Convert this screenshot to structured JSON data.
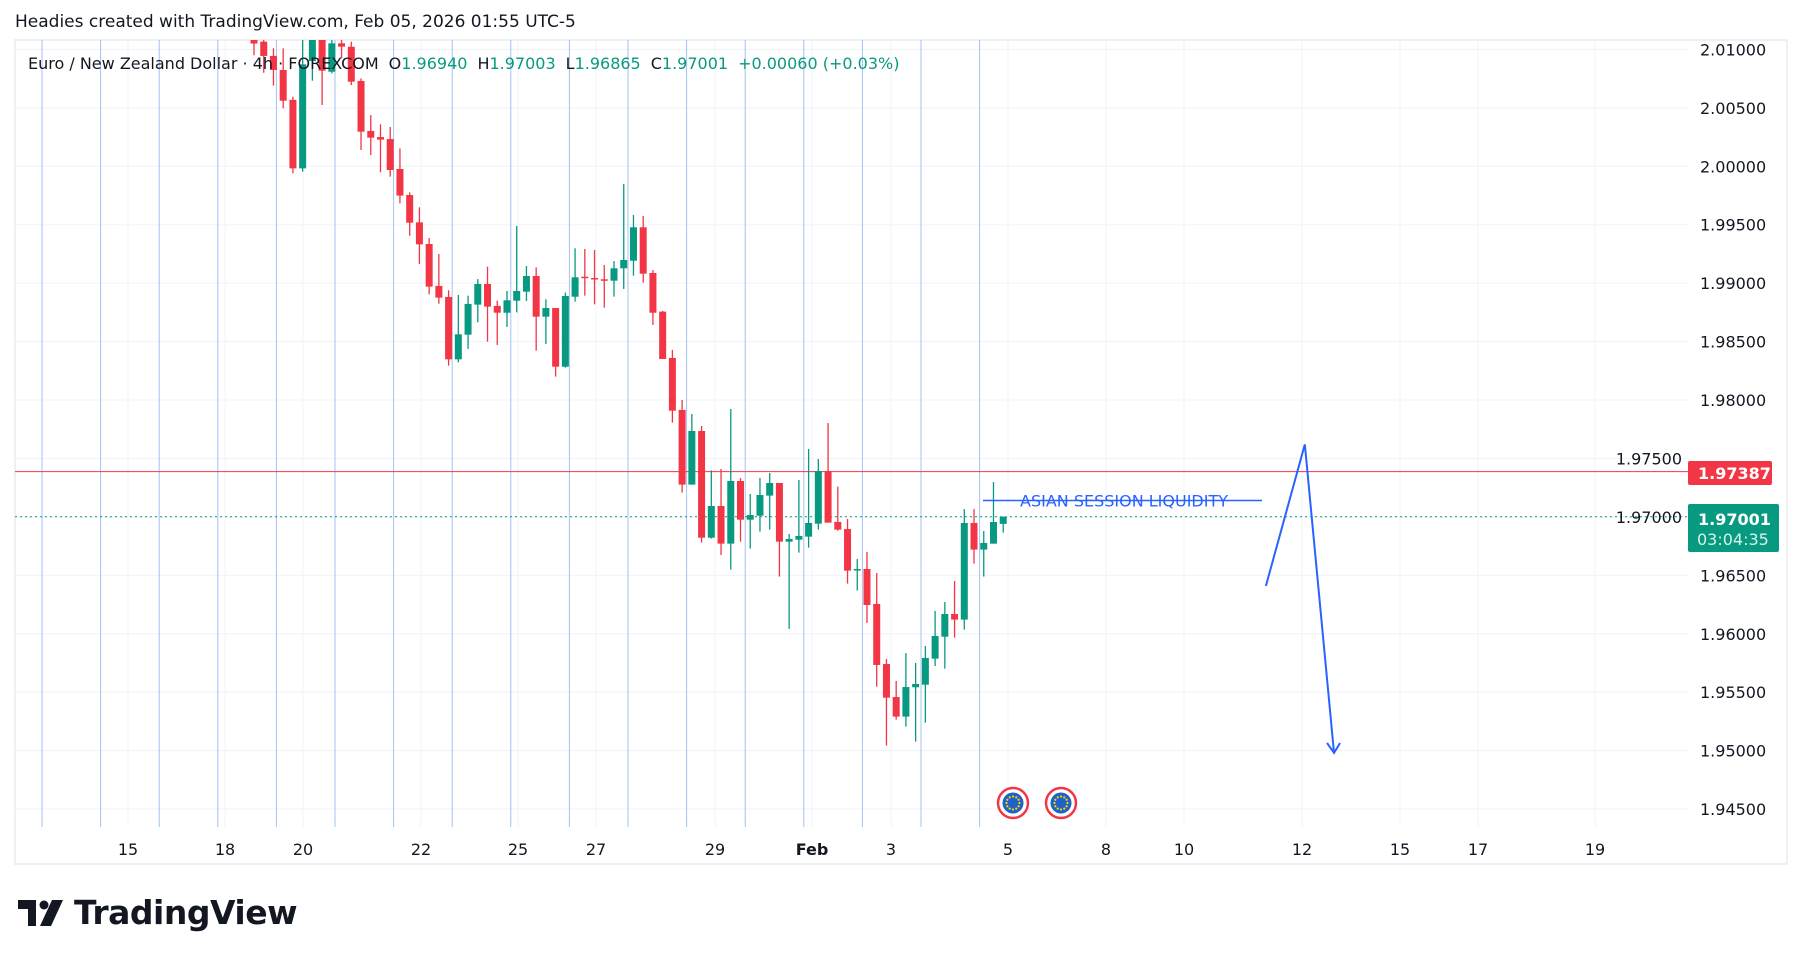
{
  "header": {
    "attribution": "Headies created with TradingView.com, Feb 05, 2026 01:55 UTC-5"
  },
  "legend": {
    "symbol": "Euro / New Zealand Dollar · 4h · FOREXCOM",
    "o_label": "O",
    "o_value": "1.96940",
    "h_label": "H",
    "h_value": "1.97003",
    "l_label": "L",
    "l_value": "1.96865",
    "c_label": "C",
    "c_value": "1.97001",
    "change": "+0.00060 (+0.03%)"
  },
  "colors": {
    "up": "#089981",
    "down": "#f23645",
    "drawing": "#2962ff",
    "session_line": "#a4c2f4",
    "grid": "#f0f3fa"
  },
  "price_labels": {
    "level_line": "1.97387",
    "last_price": "1.97001",
    "countdown": "03:04:35"
  },
  "annotation": {
    "text": "ASIAN SESSION LIQUIDITY"
  },
  "events": [
    {
      "icon": "eu-flag-icon"
    },
    {
      "icon": "eu-flag-icon"
    }
  ],
  "branding": {
    "logo_text": "TradingView"
  },
  "chart_data": {
    "type": "candlestick",
    "title": "Euro / New Zealand Dollar · 4h · FOREXCOM",
    "ylim": [
      1.9425,
      2.0125
    ],
    "y_ticks": [
      "2.01000",
      "2.00500",
      "2.00000",
      "1.99500",
      "1.99000",
      "1.98500",
      "1.98000",
      "1.97500",
      "1.97000",
      "1.96500",
      "1.96000",
      "1.95500",
      "1.95000",
      "1.94500"
    ],
    "x_ticks": [
      "15",
      "18",
      "20",
      "22",
      "25",
      "27",
      "29",
      "Feb",
      "3",
      "5",
      "8",
      "10",
      "12",
      "15",
      "17",
      "19"
    ],
    "grid": true,
    "horizontal_lines": [
      {
        "price": 1.97387,
        "style": "solid",
        "color": "#f23645"
      },
      {
        "price": 1.97001,
        "style": "dotted",
        "color": "#089981"
      }
    ],
    "annotation_line": {
      "price": 1.9714,
      "label": "ASIAN SESSION LIQUIDITY"
    },
    "projection_path": [
      {
        "candle_offset": 27,
        "price": 1.9641
      },
      {
        "candle_offset": 31,
        "price": 1.9762
      },
      {
        "candle_offset": 34,
        "price": 1.9498
      }
    ],
    "ohlc": [
      [
        2.0115,
        2.0125,
        2.0095,
        2.0105
      ],
      [
        2.01066,
        2.0112,
        2.008,
        2.00944
      ],
      [
        2.00944,
        2.01009,
        2.0069,
        2.00824
      ],
      [
        2.00824,
        2.01009,
        2.00496,
        2.00561
      ],
      [
        2.00568,
        2.00596,
        1.9994,
        1.99982
      ],
      [
        1.99982,
        2.0115,
        1.99954,
        2.00872
      ],
      [
        2.009,
        2.0135,
        2.00732,
        2.0125
      ],
      [
        2.0115,
        2.0125,
        2.00524,
        2.00818
      ],
      [
        2.00809,
        2.0125,
        2.00795,
        2.01052
      ],
      [
        2.01052,
        2.0118,
        2.00924,
        2.01023
      ],
      [
        2.01023,
        2.01066,
        2.00695,
        2.00724
      ],
      [
        2.0073,
        2.00752,
        2.00139,
        2.00296
      ],
      [
        2.00302,
        2.00439,
        2.00096,
        2.00245
      ],
      [
        2.0025,
        2.00359,
        1.99948,
        2.00228
      ],
      [
        2.00233,
        2.00336,
        1.99911,
        1.99968
      ],
      [
        1.99977,
        2.00153,
        1.99683,
        1.99749
      ],
      [
        1.99754,
        1.99777,
        1.99406,
        1.99517
      ],
      [
        1.9952,
        1.99649,
        1.99164,
        1.99332
      ],
      [
        1.99335,
        1.99386,
        1.98904,
        1.9897
      ],
      [
        1.98976,
        1.99249,
        1.98824,
        1.98876
      ],
      [
        1.98882,
        1.98939,
        1.98294,
        1.98348
      ],
      [
        1.98348,
        1.98899,
        1.98322,
        1.98562
      ],
      [
        1.98559,
        1.98893,
        1.98437,
        1.98822
      ],
      [
        1.98816,
        1.99035,
        1.98665,
        1.98993
      ],
      [
        1.98993,
        1.99141,
        1.98499,
        1.98799
      ],
      [
        1.98805,
        1.9885,
        1.98471,
        1.98747
      ],
      [
        1.98747,
        1.98933,
        1.98625,
        1.98853
      ],
      [
        1.9885,
        1.99489,
        1.9875,
        1.98933
      ],
      [
        1.98927,
        1.99147,
        1.98847,
        1.99061
      ],
      [
        1.99061,
        1.99135,
        1.98422,
        1.98713
      ],
      [
        1.98713,
        1.98862,
        1.98479,
        1.98787
      ],
      [
        1.98787,
        1.98787,
        1.982,
        1.98285
      ],
      [
        1.98285,
        1.98919,
        1.98277,
        1.9889
      ],
      [
        1.98884,
        1.99298,
        1.98842,
        1.9905
      ],
      [
        1.99055,
        1.99292,
        1.98893,
        1.99044
      ],
      [
        1.99044,
        1.99284,
        1.98819,
        1.99033
      ],
      [
        1.99033,
        1.99155,
        1.9879,
        1.99027
      ],
      [
        1.99021,
        1.99189,
        1.98884,
        1.99127
      ],
      [
        1.99127,
        1.99848,
        1.9895,
        1.99198
      ],
      [
        1.99192,
        1.99583,
        1.99064,
        1.99478
      ],
      [
        1.99478,
        1.99575,
        1.99004,
        1.99081
      ],
      [
        1.99087,
        1.99112,
        1.98642,
        1.98747
      ],
      [
        1.98756,
        1.98762,
        1.98351,
        1.98351
      ],
      [
        1.9836,
        1.98428,
        1.97806,
        1.97909
      ],
      [
        1.97915,
        1.98,
        1.97207,
        1.97276
      ],
      [
        1.97276,
        1.9788,
        1.97276,
        1.97735
      ],
      [
        1.97735,
        1.97778,
        1.9678,
        1.96822
      ],
      [
        1.96822,
        1.97398,
        1.96814,
        1.97093
      ],
      [
        1.97093,
        1.9741,
        1.96674,
        1.96771
      ],
      [
        1.96771,
        1.97923,
        1.96549,
        1.97307
      ],
      [
        1.97307,
        1.97333,
        1.96788,
        1.96976
      ],
      [
        1.96976,
        1.97196,
        1.96728,
        1.97016
      ],
      [
        1.9701,
        1.97333,
        1.96874,
        1.97187
      ],
      [
        1.97182,
        1.97376,
        1.96891,
        1.9729
      ],
      [
        1.9729,
        1.9729,
        1.96489,
        1.96788
      ],
      [
        1.96788,
        1.96854,
        1.96041,
        1.96811
      ],
      [
        1.96805,
        1.97316,
        1.96694,
        1.96837
      ],
      [
        1.96831,
        1.97581,
        1.96737,
        1.96948
      ],
      [
        1.96942,
        1.97495,
        1.96891,
        1.97393
      ],
      [
        1.97393,
        1.97803,
        1.96951,
        1.96951
      ],
      [
        1.96957,
        1.97259,
        1.96882,
        1.96891
      ],
      [
        1.96896,
        1.96982,
        1.96429,
        1.9654
      ],
      [
        1.96543,
        1.9664,
        1.96369,
        1.96554
      ],
      [
        1.96554,
        1.967,
        1.96092,
        1.96246
      ],
      [
        1.96255,
        1.9652,
        1.95547,
        1.95733
      ],
      [
        1.95741,
        1.95784,
        1.95043,
        1.95453
      ],
      [
        1.95459,
        1.95596,
        1.95265,
        1.95291
      ],
      [
        1.95291,
        1.95835,
        1.95205,
        1.95544
      ],
      [
        1.95542,
        1.9575,
        1.95077,
        1.9557
      ],
      [
        1.95564,
        1.95895,
        1.95239,
        1.95793
      ],
      [
        1.95787,
        1.96195,
        1.95724,
        1.95981
      ],
      [
        1.95975,
        1.96272,
        1.95701,
        1.96169
      ],
      [
        1.96169,
        1.96451,
        1.95967,
        1.96121
      ],
      [
        1.96121,
        1.97067,
        1.96035,
        1.96948
      ],
      [
        1.96948,
        1.97067,
        1.966,
        1.9672
      ],
      [
        1.9672,
        1.96879,
        1.96489,
        1.96777
      ],
      [
        1.96771,
        1.97298,
        1.96771,
        1.96956
      ],
      [
        1.9694,
        1.97003,
        1.96865,
        1.97001
      ]
    ]
  }
}
